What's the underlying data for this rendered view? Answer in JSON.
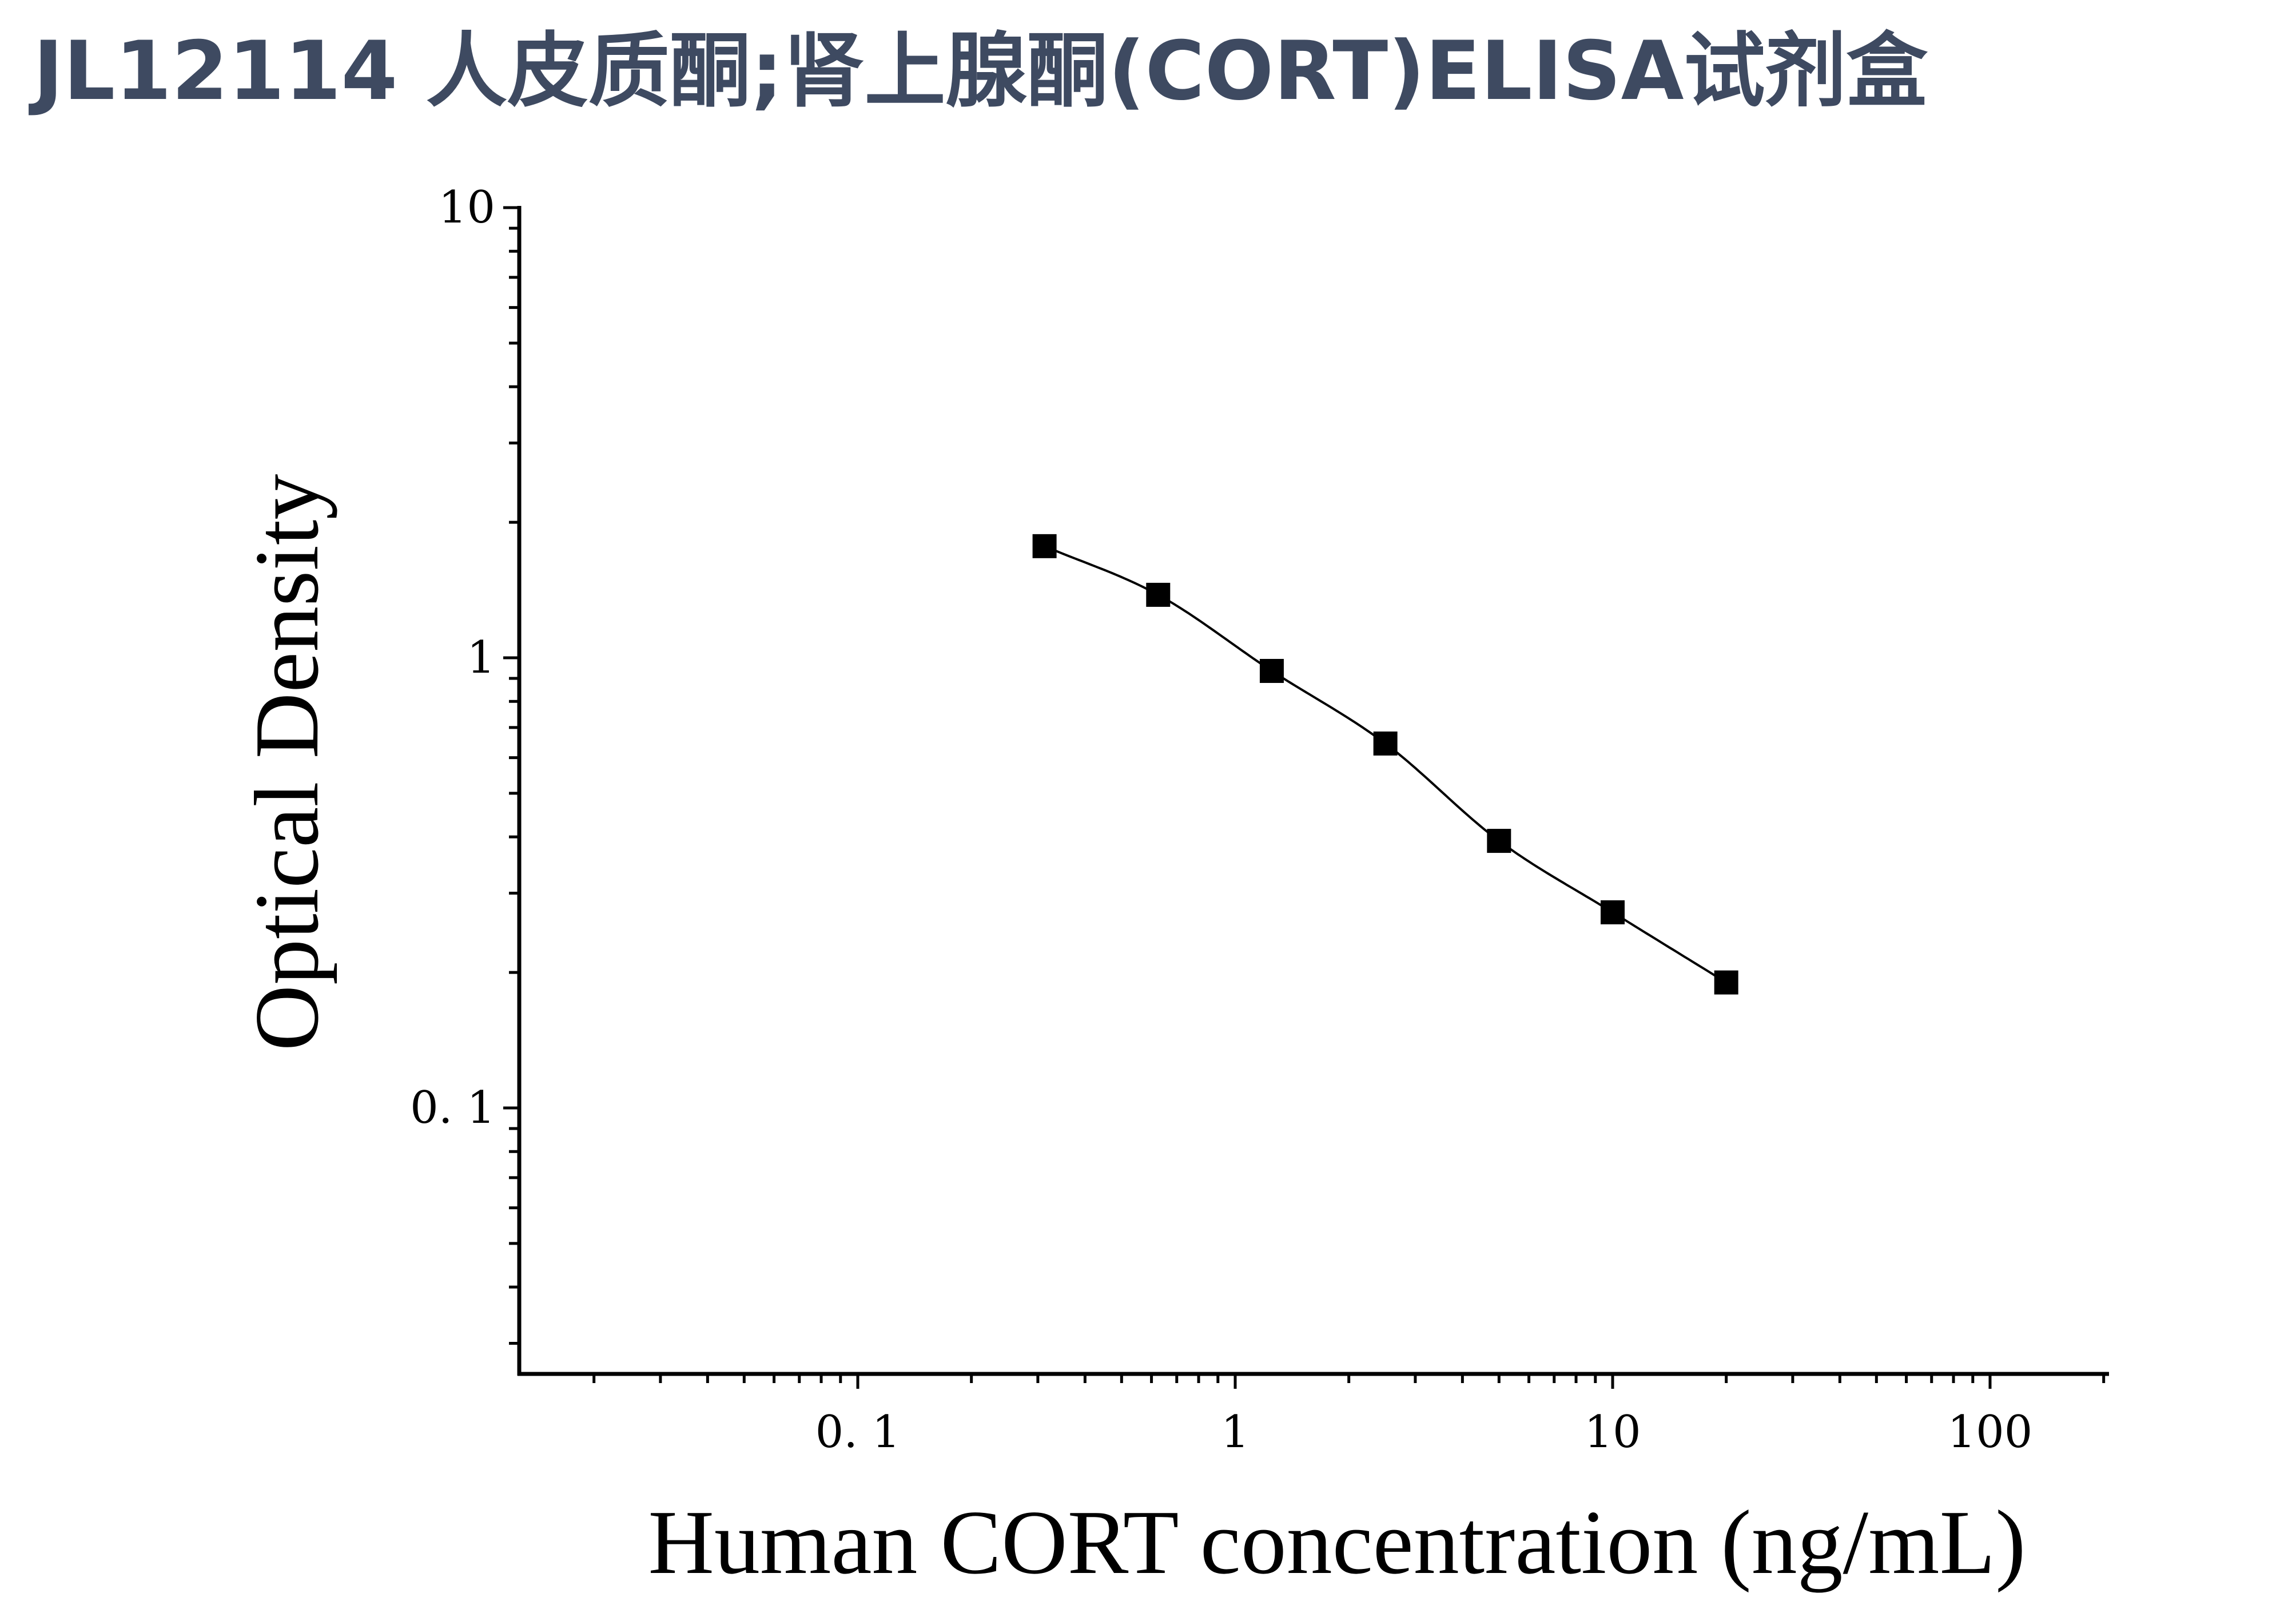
{
  "header": {
    "title": "JL12114 人皮质酮;肾上腺酮(CORT)ELISA试剂盒"
  },
  "colors": {
    "title": "#3e4a61",
    "axis": "#000000",
    "markers": "#000000"
  },
  "chart_data": {
    "type": "scatter",
    "xscale": "log",
    "yscale": "log",
    "xlabel": "Human CORT concentration (ng/mL)",
    "ylabel": "Optical Density",
    "xlim": [
      0.0125,
      200
    ],
    "ylim": [
      0.026,
      10
    ],
    "xticks": [
      {
        "value": 0.1,
        "label": "0. 1"
      },
      {
        "value": 1,
        "label": "1"
      },
      {
        "value": 10,
        "label": "10"
      },
      {
        "value": 100,
        "label": "100"
      }
    ],
    "yticks": [
      {
        "value": 0.1,
        "label": "0. 1"
      },
      {
        "value": 1,
        "label": "1"
      },
      {
        "value": 10,
        "label": "10"
      }
    ],
    "grid": false,
    "marker": "square",
    "fit_curve": true,
    "series": [
      {
        "points": [
          {
            "x": 0.3125,
            "y": 1.77
          },
          {
            "x": 0.625,
            "y": 1.38
          },
          {
            "x": 1.25,
            "y": 0.935
          },
          {
            "x": 2.5,
            "y": 0.645
          },
          {
            "x": 5,
            "y": 0.392
          },
          {
            "x": 10,
            "y": 0.272
          },
          {
            "x": 20,
            "y": 0.19
          }
        ]
      }
    ]
  }
}
